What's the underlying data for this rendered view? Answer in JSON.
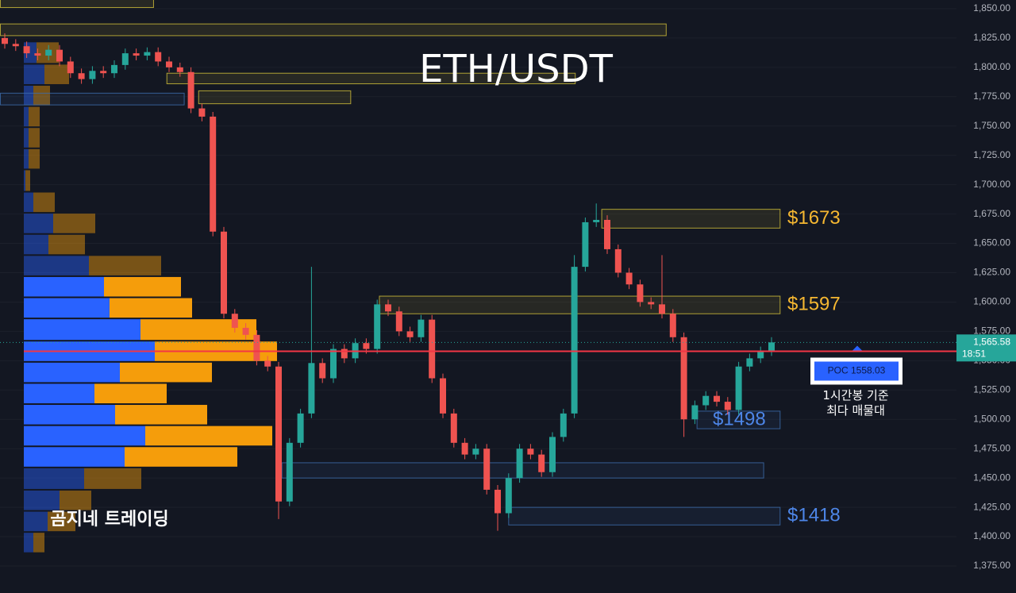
{
  "chart_data": {
    "type": "candlestick",
    "title": "ETH/USDT",
    "watermark": "곰지네 트레이딩",
    "ylim": [
      1352,
      1857.4
    ],
    "yticks": [
      {
        "value": 1850,
        "label": "1,850.00"
      },
      {
        "value": 1825,
        "label": "1,825.00"
      },
      {
        "value": 1800,
        "label": "1,800.00"
      },
      {
        "value": 1775,
        "label": "1,775.00"
      },
      {
        "value": 1750,
        "label": "1,750.00"
      },
      {
        "value": 1725,
        "label": "1,725.00"
      },
      {
        "value": 1700,
        "label": "1,700.00"
      },
      {
        "value": 1675,
        "label": "1,675.00"
      },
      {
        "value": 1650,
        "label": "1,650.00"
      },
      {
        "value": 1625,
        "label": "1,625.00"
      },
      {
        "value": 1600,
        "label": "1,600.00"
      },
      {
        "value": 1575,
        "label": "1,575.00"
      },
      {
        "value": 1550,
        "label": "1,550.00"
      },
      {
        "value": 1525,
        "label": "1,525.00"
      },
      {
        "value": 1500,
        "label": "1,500.00"
      },
      {
        "value": 1475,
        "label": "1,475.00"
      },
      {
        "value": 1450,
        "label": "1,450.00"
      },
      {
        "value": 1425,
        "label": "1,425.00"
      },
      {
        "value": 1400,
        "label": "1,400.00"
      },
      {
        "value": 1375,
        "label": "1,375.00"
      }
    ],
    "grid": true,
    "up_color": "#26a69a",
    "down_color": "#ef5350",
    "open": [
      1825,
      1820,
      1818,
      1812,
      1810,
      1815,
      1805,
      1795,
      1790,
      1797,
      1795,
      1802,
      1812,
      1810,
      1813,
      1805,
      1800,
      1796,
      1765,
      1758,
      1660,
      1590,
      1578,
      1572,
      1550,
      1545,
      1430,
      1480,
      1505,
      1548,
      1535,
      1560,
      1552,
      1565,
      1560,
      1598,
      1592,
      1575,
      1570,
      1585,
      1535,
      1505,
      1480,
      1470,
      1475,
      1440,
      1420,
      1450,
      1475,
      1470,
      1455,
      1485,
      1505,
      1630,
      1668,
      1670,
      1645,
      1625,
      1615,
      1600,
      1598,
      1590,
      1570,
      1500,
      1512,
      1520,
      1515,
      1508,
      1545,
      1552,
      1558
    ],
    "high": [
      1829,
      1824,
      1822,
      1816,
      1819,
      1819,
      1809,
      1799,
      1801,
      1801,
      1806,
      1816,
      1816,
      1817,
      1817,
      1809,
      1804,
      1800,
      1769,
      1762,
      1664,
      1594,
      1582,
      1576,
      1554,
      1549,
      1484,
      1509,
      1630,
      1552,
      1564,
      1564,
      1569,
      1569,
      1602,
      1602,
      1596,
      1579,
      1589,
      1589,
      1539,
      1509,
      1484,
      1479,
      1479,
      1444,
      1454,
      1479,
      1479,
      1474,
      1489,
      1509,
      1640,
      1672,
      1684,
      1674,
      1649,
      1629,
      1619,
      1604,
      1640,
      1594,
      1574,
      1516,
      1524,
      1524,
      1519,
      1549,
      1556,
      1562,
      1570
    ],
    "low": [
      1816,
      1814,
      1808,
      1806,
      1806,
      1801,
      1791,
      1786,
      1786,
      1791,
      1791,
      1798,
      1806,
      1806,
      1801,
      1796,
      1792,
      1761,
      1754,
      1656,
      1586,
      1574,
      1568,
      1546,
      1541,
      1415,
      1426,
      1476,
      1501,
      1531,
      1531,
      1548,
      1548,
      1556,
      1556,
      1588,
      1571,
      1566,
      1566,
      1531,
      1501,
      1476,
      1466,
      1466,
      1436,
      1405,
      1416,
      1446,
      1466,
      1451,
      1451,
      1481,
      1501,
      1626,
      1664,
      1641,
      1621,
      1611,
      1596,
      1594,
      1586,
      1566,
      1485,
      1496,
      1508,
      1511,
      1504,
      1504,
      1541,
      1548,
      1554
    ],
    "close": [
      1820,
      1818,
      1812,
      1810,
      1815,
      1805,
      1795,
      1790,
      1797,
      1795,
      1802,
      1812,
      1810,
      1813,
      1805,
      1800,
      1796,
      1765,
      1758,
      1660,
      1590,
      1578,
      1572,
      1550,
      1545,
      1430,
      1480,
      1505,
      1548,
      1535,
      1560,
      1552,
      1565,
      1560,
      1598,
      1592,
      1575,
      1570,
      1585,
      1535,
      1505,
      1480,
      1470,
      1475,
      1440,
      1420,
      1450,
      1475,
      1470,
      1455,
      1485,
      1505,
      1630,
      1668,
      1670,
      1645,
      1625,
      1615,
      1600,
      1598,
      1590,
      1570,
      1500,
      1512,
      1520,
      1515,
      1508,
      1545,
      1552,
      1558,
      1565.58
    ],
    "current_price": {
      "value": 1565.58,
      "label": "1,565.58"
    },
    "countdown": "18:51",
    "poc": {
      "value": 1558.03,
      "label": "POC  1558.03"
    },
    "poc_note": [
      "1시간봉 기준",
      "최다 매물대"
    ],
    "volume_profile": {
      "bins": [
        1386,
        1404,
        1422,
        1440,
        1459,
        1477,
        1495,
        1513,
        1531,
        1549,
        1567,
        1586,
        1604,
        1622,
        1640,
        1658,
        1676,
        1694,
        1713,
        1731,
        1749,
        1767,
        1785,
        1803,
        1822
      ],
      "up": [
        12,
        30,
        45,
        76,
        127,
        153,
        115,
        89,
        121,
        165,
        147,
        108,
        101,
        82,
        31,
        37,
        12,
        2,
        6,
        6,
        6,
        12,
        26,
        16
      ],
      "down": [
        14,
        35,
        40,
        72,
        142,
        160,
        116,
        91,
        116,
        154,
        146,
        104,
        97,
        91,
        46,
        53,
        27,
        6,
        14,
        14,
        14,
        21,
        31,
        28
      ],
      "value_area": [
        1459,
        1622
      ],
      "up_color": "#2962ff",
      "down_color": "#f59d0b"
    },
    "zones": [
      {
        "low": 1663,
        "high": 1679,
        "start": 54.5,
        "end": 71,
        "color": "#d4c23a",
        "label": "$1673",
        "label_color": "#f5b731"
      },
      {
        "low": 1590,
        "high": 1605,
        "start": 34.2,
        "end": 71,
        "color": "#d4c23a",
        "label": "$1597",
        "label_color": "#f5b731"
      },
      {
        "low": 1492,
        "high": 1507,
        "start": 63.2,
        "end": 71,
        "color": "#3d6fb0",
        "label": "$1498",
        "label_color": "#4d86e8"
      },
      {
        "low": 1410,
        "high": 1425,
        "start": 46,
        "end": 71,
        "color": "#3d6fb0",
        "label": "$1418",
        "label_color": "#4d86e8"
      },
      {
        "low": 1450,
        "high": 1463,
        "start": 25.3,
        "end": 69.5,
        "color": "#3d6fb0"
      },
      {
        "low": 1827,
        "high": 1837,
        "start": -0.4,
        "end": 60.6,
        "color": "#d4c23a"
      },
      {
        "low": 1851,
        "high": 1860,
        "start": -0.4,
        "end": 13.8,
        "color": "#d4c23a"
      },
      {
        "low": 1786,
        "high": 1795,
        "start": 14.8,
        "end": 52.3,
        "color": "#d4c23a"
      },
      {
        "low": 1769,
        "high": 1780,
        "start": 17.7,
        "end": 31.8,
        "color": "#d4c23a"
      },
      {
        "low": 1768,
        "high": 1778,
        "start": -0.4,
        "end": 16.6,
        "color": "#3d6fb0"
      }
    ]
  }
}
